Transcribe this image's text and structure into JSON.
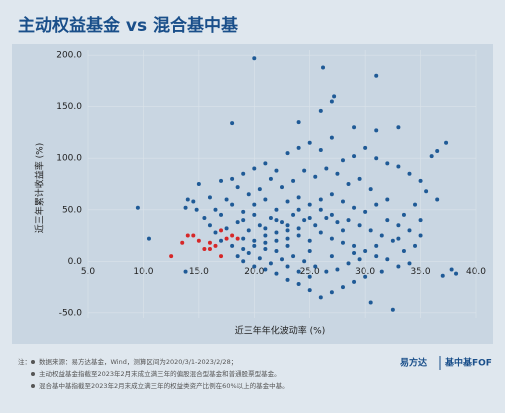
{
  "chart_data": {
    "type": "scatter",
    "title": "主动权益基金 vs 混合基中基",
    "xlabel": "近三年年化波动率 (%)",
    "ylabel": "近三年累计收益率 (%)",
    "xlim": [
      5,
      40
    ],
    "xticks": [
      {
        "value": 5,
        "label": "5.0"
      },
      {
        "value": 10,
        "label": "10.0"
      },
      {
        "value": 15,
        "label": "15.0"
      },
      {
        "value": 20,
        "label": "20.0"
      },
      {
        "value": 25,
        "label": "25.0"
      },
      {
        "value": 30,
        "label": "30.0"
      },
      {
        "value": 35,
        "label": "35.0"
      },
      {
        "value": 40,
        "label": "40.0"
      }
    ],
    "ylim": [
      -55,
      205
    ],
    "yticks": [
      {
        "value": -50,
        "label": "-50.0"
      },
      {
        "value": 0,
        "label": "0.0"
      },
      {
        "value": 50,
        "label": "50.0"
      },
      {
        "value": 100,
        "label": "100.0"
      },
      {
        "value": 150,
        "label": "150.0"
      },
      {
        "value": 200,
        "label": "200.0"
      }
    ],
    "grid": true,
    "series": [
      {
        "color": "#1f5a96",
        "x": [
          9.5,
          10.5,
          20,
          26.2,
          31,
          27.2,
          27,
          26,
          29,
          31,
          33,
          18,
          24,
          37.3,
          36.5,
          36,
          37.8,
          38.2,
          37,
          13.8,
          32.5,
          30.5,
          15,
          14,
          14.5,
          13.8,
          14.8,
          16,
          17,
          18,
          19,
          20,
          21,
          22,
          23,
          24,
          25,
          26,
          27,
          28,
          29,
          30,
          31,
          32,
          33,
          34,
          35,
          35.5,
          34.5,
          33.5,
          32,
          30.5,
          29.5,
          28.5,
          27.5,
          26.5,
          25.5,
          24.5,
          23.5,
          22.5,
          21.5,
          20.5,
          19.5,
          18.5,
          17.5,
          16.5,
          15.5,
          16,
          17,
          18,
          19,
          20,
          21,
          22,
          23,
          24,
          25,
          26,
          27,
          28,
          29,
          30,
          31,
          32,
          33,
          34,
          35,
          34.5,
          33.5,
          32.5,
          31.5,
          30.5,
          29.5,
          28.5,
          27.5,
          26.5,
          25.5,
          24.5,
          23.5,
          22.5,
          21.5,
          20.5,
          19.5,
          18.5,
          17.5,
          16.5,
          17,
          18,
          19,
          20,
          21,
          22,
          23,
          24,
          25,
          26,
          27,
          28,
          29,
          30,
          31,
          32,
          33,
          34,
          31.5,
          30,
          29,
          28,
          27,
          26,
          25,
          24,
          23,
          22,
          21,
          20,
          19,
          18.5,
          19.5,
          20.5,
          21.5,
          22.5,
          23.5,
          24.5,
          25.5,
          26.5,
          27.5,
          28.5,
          29.5,
          25,
          24,
          23,
          22,
          21,
          20,
          19,
          23,
          25,
          27,
          29,
          31,
          33,
          35,
          36.5,
          22,
          23,
          24,
          25,
          21,
          20,
          19,
          26,
          27,
          28,
          24,
          22,
          23,
          21
        ],
        "values": [
          52,
          22,
          197,
          188,
          180,
          160,
          155,
          146,
          130,
          127,
          130,
          134,
          135,
          115,
          107,
          102,
          -8,
          -12,
          -14,
          -10,
          -47,
          -40,
          75,
          60,
          58,
          52,
          50,
          62,
          78,
          80,
          85,
          90,
          95,
          88,
          105,
          110,
          115,
          108,
          120,
          98,
          102,
          110,
          100,
          95,
          92,
          85,
          78,
          68,
          55,
          45,
          60,
          70,
          80,
          75,
          85,
          90,
          82,
          88,
          78,
          72,
          80,
          70,
          65,
          72,
          60,
          50,
          42,
          35,
          45,
          55,
          48,
          55,
          60,
          50,
          58,
          62,
          55,
          60,
          65,
          58,
          52,
          48,
          55,
          40,
          35,
          30,
          25,
          15,
          10,
          20,
          25,
          30,
          35,
          40,
          38,
          42,
          35,
          40,
          45,
          38,
          42,
          35,
          30,
          38,
          32,
          28,
          20,
          15,
          12,
          20,
          25,
          28,
          30,
          25,
          20,
          28,
          22,
          18,
          15,
          10,
          5,
          2,
          -5,
          -2,
          -10,
          -15,
          -20,
          -25,
          -30,
          -35,
          -28,
          -22,
          -18,
          -12,
          -8,
          -5,
          0,
          5,
          8,
          3,
          -2,
          2,
          5,
          0,
          -5,
          -10,
          -8,
          -2,
          2,
          -15,
          -10,
          -5,
          10,
          12,
          15,
          22,
          15,
          10,
          5,
          8,
          15,
          22,
          40,
          60,
          40,
          35,
          32,
          42,
          32,
          45,
          40,
          50,
          45,
          30,
          50,
          20,
          22,
          18
        ]
      },
      {
        "color": "#d62728",
        "x": [
          12.5,
          13.5,
          14,
          14.5,
          15,
          15.5,
          16,
          16.5,
          17,
          17.5,
          18,
          18.5,
          17,
          16
        ],
        "values": [
          5,
          18,
          25,
          25,
          20,
          12,
          18,
          15,
          30,
          22,
          25,
          22,
          5,
          12
        ]
      }
    ]
  },
  "notes": {
    "prefix": "注：",
    "lines": [
      "数据来源：易方达基金，Wind，测算区间为2020/3/1-2023/2/28；",
      "主动权益基金指截至2023年2月末成立满三年的偏股混合型基金和普通股票型基金。",
      "混合基中基指截至2023年2月末成立满三年的权益类资产比例在60%以上的基金中基。"
    ]
  },
  "logo": {
    "brand": "易方达",
    "product": "基中基FOF"
  }
}
